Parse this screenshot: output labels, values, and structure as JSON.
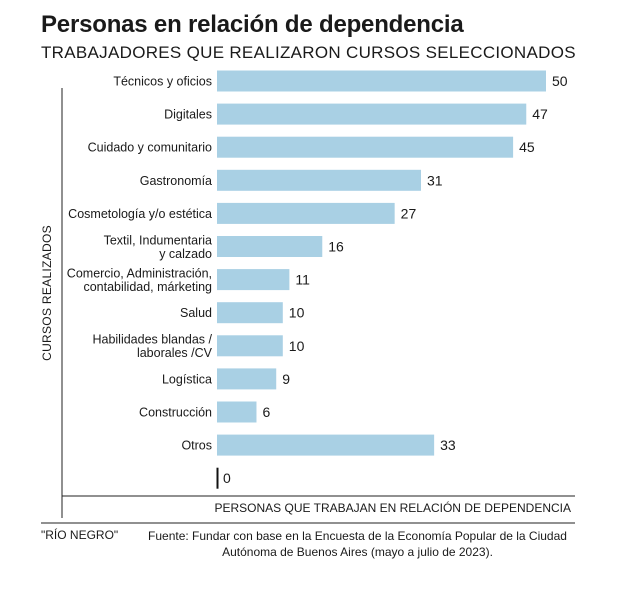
{
  "chart_data": {
    "type": "bar",
    "orientation": "horizontal",
    "title": "Personas en relación de dependencia",
    "subtitle": "TRABAJADORES QUE REALIZARON CURSOS SELECCIONADOS",
    "ylabel": "CURSOS REALIZADOS",
    "xlabel": "PERSONAS QUE TRABAJAN EN RELACIÓN DE DEPENDENCIA",
    "categories": [
      [
        "Técnicos y oficios"
      ],
      [
        "Digitales"
      ],
      [
        "Cuidado y comunitario"
      ],
      [
        "Gastronomía"
      ],
      [
        "Cosmetología y/o estética"
      ],
      [
        "Textil, Indumentaria",
        "y calzado"
      ],
      [
        "Comercio, Administración,",
        "contabilidad, márketing"
      ],
      [
        "Salud"
      ],
      [
        "Habilidades blandas /",
        "laborales /CV"
      ],
      [
        "Logística"
      ],
      [
        "Construcción"
      ],
      [
        "Otros"
      ],
      [
        ""
      ]
    ],
    "values": [
      50,
      47,
      45,
      31,
      27,
      16,
      11,
      10,
      10,
      9,
      6,
      33,
      0
    ],
    "xlim": [
      0,
      50
    ],
    "bar_color": "#a9d0e4",
    "grid": false
  },
  "footer": {
    "publisher": "\"RÍO NEGRO\"",
    "source": "Fuente: Fundar con base en la Encuesta de la Economía Popular de la Ciudad Autónoma de Buenos Aires (mayo a julio de 2023)."
  }
}
